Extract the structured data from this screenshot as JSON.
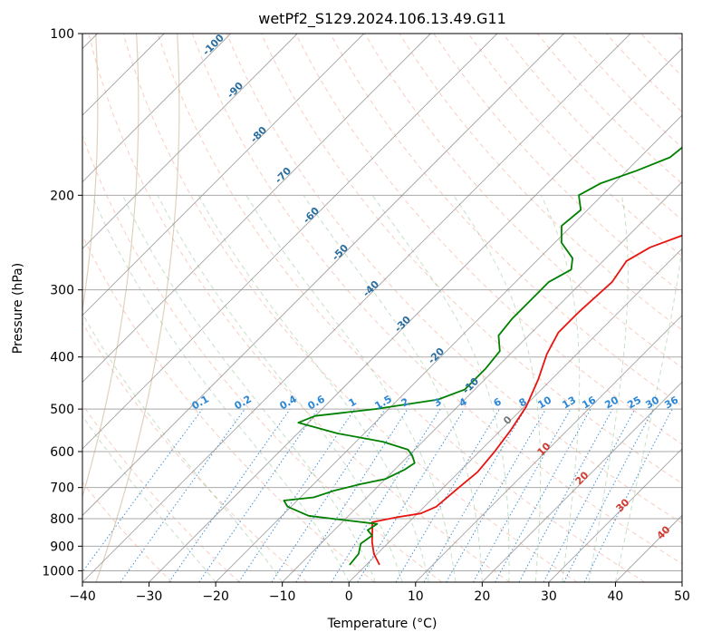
{
  "chart_data": {
    "type": "line",
    "title": "wetPf2_S129.2024.106.13.49.G11",
    "xlabel": "Temperature (°C)",
    "ylabel": "Pressure (hPa)",
    "xlim": [
      -40,
      50
    ],
    "ylim": [
      1050,
      100
    ],
    "y_scale": "log",
    "grid": true,
    "x_ticks": [
      -40,
      -30,
      -20,
      -10,
      0,
      10,
      20,
      30,
      40,
      50
    ],
    "y_ticks": [
      1000,
      900,
      800,
      700,
      600,
      500,
      400,
      300,
      200,
      100
    ],
    "series": [
      {
        "color": "#e8140f",
        "points": [
          [
            2.0,
            975
          ],
          [
            -0.5,
            930
          ],
          [
            -2.5,
            885
          ],
          [
            -4.5,
            835
          ],
          [
            -5.5,
            812
          ],
          [
            -2.5,
            795
          ],
          [
            0.5,
            782
          ],
          [
            1.8,
            760
          ],
          [
            2.3,
            700
          ],
          [
            2.8,
            655
          ],
          [
            2.3,
            600
          ],
          [
            1.5,
            548
          ],
          [
            0.3,
            495
          ],
          [
            -2.0,
            440
          ],
          [
            -4.5,
            395
          ],
          [
            -6.0,
            360
          ],
          [
            -6.0,
            330
          ],
          [
            -5.5,
            290
          ],
          [
            -6.5,
            265
          ],
          [
            -5.0,
            250
          ],
          [
            0.0,
            230
          ],
          [
            5.0,
            212
          ],
          [
            9.0,
            195
          ],
          [
            11.5,
            180
          ],
          [
            14.0,
            160
          ],
          [
            16.5,
            140
          ],
          [
            19.5,
            125
          ],
          [
            22.0,
            115
          ],
          [
            26.5,
            100
          ]
        ]
      },
      {
        "color": "#008000",
        "points": [
          [
            -2.5,
            975
          ],
          [
            -2.8,
            930
          ],
          [
            -4.0,
            890
          ],
          [
            -3.5,
            860
          ],
          [
            -5.0,
            840
          ],
          [
            -4.5,
            818
          ],
          [
            -12.0,
            800
          ],
          [
            -16.0,
            790
          ],
          [
            -20.5,
            760
          ],
          [
            -22.0,
            740
          ],
          [
            -18.0,
            730
          ],
          [
            -16.0,
            710
          ],
          [
            -13.0,
            690
          ],
          [
            -10.0,
            675
          ],
          [
            -8.5,
            648
          ],
          [
            -8.0,
            630
          ],
          [
            -9.5,
            610
          ],
          [
            -11.0,
            595
          ],
          [
            -16.0,
            575
          ],
          [
            -24.0,
            555
          ],
          [
            -31.5,
            530
          ],
          [
            -30.0,
            515
          ],
          [
            -22.0,
            500
          ],
          [
            -14.0,
            480
          ],
          [
            -11.5,
            460
          ],
          [
            -11.5,
            420
          ],
          [
            -12.0,
            390
          ],
          [
            -14.5,
            365
          ],
          [
            -15.0,
            340
          ],
          [
            -15.0,
            305
          ],
          [
            -15.0,
            290
          ],
          [
            -13.5,
            275
          ],
          [
            -15.0,
            262
          ],
          [
            -19.0,
            245
          ],
          [
            -21.5,
            228
          ],
          [
            -21.0,
            213
          ],
          [
            -23.5,
            200
          ],
          [
            -22.0,
            190
          ],
          [
            -18.5,
            180
          ],
          [
            -15.5,
            170
          ],
          [
            -15.0,
            160
          ],
          [
            -9.5,
            140
          ],
          [
            -7.5,
            128
          ],
          [
            -5.0,
            115
          ],
          [
            -2.0,
            100
          ]
        ]
      }
    ],
    "dry_adiabat_labels": [
      "-100",
      "-90",
      "-80",
      "-70",
      "-60",
      "-50",
      "-40",
      "-30",
      "-20",
      "-10"
    ],
    "mixing_ratio_labels": [
      "0.1",
      "0.2",
      "0.4",
      "0.6",
      "1",
      "1.5",
      "2",
      "3",
      "4",
      "6",
      "8",
      "10",
      "13",
      "16",
      "20",
      "25",
      "30",
      "36"
    ],
    "moist_adiabat_labels": [
      "0",
      "10",
      "20",
      "30",
      "40"
    ]
  }
}
